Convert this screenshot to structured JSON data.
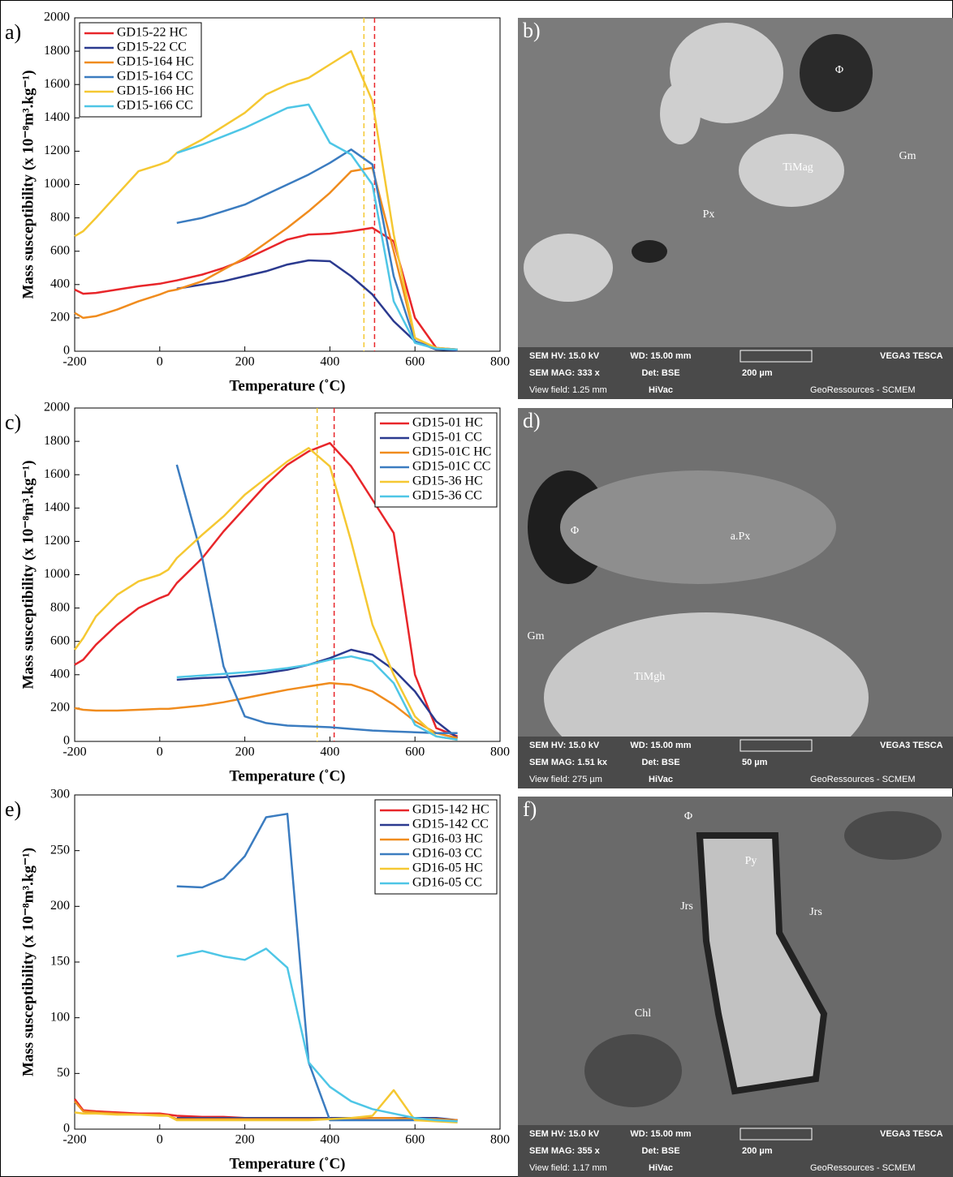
{
  "chart_data": [
    {
      "type": "line",
      "panel_label": "a)",
      "xlabel": "Temperature (˚C)",
      "ylabel": "Mass susceptibility (x 10⁻⁸m³.kg⁻¹)",
      "x": [
        -200,
        -180,
        -150,
        -100,
        -50,
        0,
        20,
        40,
        100,
        150,
        200,
        250,
        300,
        350,
        400,
        450,
        500,
        550,
        600,
        650,
        700
      ],
      "xlim": [
        -200,
        800
      ],
      "xticks": [
        -200,
        0,
        200,
        400,
        600,
        800
      ],
      "ylim": [
        0,
        2000
      ],
      "yticks": [
        0,
        200,
        400,
        600,
        800,
        1000,
        1200,
        1400,
        1600,
        1800,
        2000
      ],
      "legend": "upper left",
      "vlines": [
        {
          "value": 480,
          "color": "#f5c832"
        },
        {
          "value": 505,
          "color": "#e8262a"
        }
      ],
      "series": [
        {
          "name": "GD15-22 HC",
          "color": "#e8262a",
          "values": [
            370,
            345,
            350,
            370,
            390,
            405,
            415,
            425,
            460,
            500,
            550,
            610,
            670,
            700,
            705,
            720,
            740,
            660,
            200,
            20,
            10
          ]
        },
        {
          "name": "GD15-22 CC",
          "color": "#2b3a8f",
          "values": [
            null,
            null,
            null,
            null,
            null,
            null,
            null,
            375,
            400,
            420,
            450,
            480,
            520,
            545,
            540,
            450,
            340,
            180,
            60,
            10,
            5
          ]
        },
        {
          "name": "GD15-164 HC",
          "color": "#f08c1e",
          "values": [
            230,
            200,
            210,
            250,
            300,
            340,
            360,
            370,
            420,
            490,
            560,
            650,
            740,
            840,
            950,
            1080,
            1100,
            600,
            80,
            15,
            10
          ]
        },
        {
          "name": "GD15-164 CC",
          "color": "#3b7cc0",
          "values": [
            null,
            null,
            null,
            null,
            null,
            null,
            null,
            770,
            800,
            840,
            880,
            940,
            1000,
            1060,
            1130,
            1210,
            1120,
            450,
            60,
            15,
            10
          ]
        },
        {
          "name": "GD15-166 HC",
          "color": "#f5c832",
          "values": [
            690,
            720,
            800,
            940,
            1080,
            1120,
            1140,
            1190,
            1270,
            1350,
            1430,
            1540,
            1600,
            1640,
            1720,
            1800,
            1500,
            700,
            80,
            20,
            10
          ]
        },
        {
          "name": "GD15-166 CC",
          "color": "#4ec6e6",
          "values": [
            null,
            null,
            null,
            null,
            null,
            null,
            null,
            1190,
            1240,
            1290,
            1340,
            1400,
            1460,
            1480,
            1250,
            1180,
            1000,
            300,
            50,
            15,
            10
          ]
        }
      ]
    },
    {
      "type": "line",
      "panel_label": "c)",
      "xlabel": "Temperature (˚C)",
      "ylabel": "Mass susceptibility (x 10⁻⁸m³.kg⁻¹)",
      "x": [
        -200,
        -180,
        -150,
        -100,
        -50,
        0,
        20,
        40,
        100,
        150,
        200,
        250,
        300,
        350,
        400,
        450,
        500,
        550,
        600,
        650,
        700
      ],
      "xlim": [
        -200,
        800
      ],
      "xticks": [
        -200,
        0,
        200,
        400,
        600,
        800
      ],
      "ylim": [
        0,
        2000
      ],
      "yticks": [
        0,
        200,
        400,
        600,
        800,
        1000,
        1200,
        1400,
        1600,
        1800,
        2000
      ],
      "legend": "upper right",
      "vlines": [
        {
          "value": 370,
          "color": "#f5c832"
        },
        {
          "value": 410,
          "color": "#e8262a"
        }
      ],
      "series": [
        {
          "name": "GD15-01 HC",
          "color": "#e8262a",
          "values": [
            460,
            490,
            580,
            700,
            800,
            860,
            880,
            950,
            1100,
            1260,
            1400,
            1540,
            1660,
            1740,
            1790,
            1650,
            1450,
            1250,
            400,
            80,
            30
          ]
        },
        {
          "name": "GD15-01 CC",
          "color": "#2b3a8f",
          "values": [
            null,
            null,
            null,
            null,
            null,
            null,
            null,
            370,
            380,
            385,
            395,
            410,
            430,
            460,
            500,
            550,
            520,
            430,
            300,
            120,
            20
          ]
        },
        {
          "name": "GD15-01C HC",
          "color": "#f08c1e",
          "values": [
            200,
            190,
            185,
            185,
            190,
            195,
            195,
            200,
            215,
            235,
            260,
            285,
            310,
            330,
            350,
            340,
            300,
            220,
            120,
            50,
            20
          ]
        },
        {
          "name": "GD15-01C CC",
          "color": "#3b7cc0",
          "values": [
            null,
            null,
            null,
            null,
            null,
            null,
            null,
            1660,
            1100,
            450,
            150,
            110,
            95,
            90,
            85,
            75,
            65,
            60,
            55,
            50,
            50
          ]
        },
        {
          "name": "GD15-36 HC",
          "color": "#f5c832",
          "values": [
            550,
            620,
            750,
            880,
            960,
            1000,
            1030,
            1100,
            1240,
            1350,
            1480,
            1580,
            1680,
            1760,
            1650,
            1200,
            700,
            400,
            150,
            30,
            10
          ]
        },
        {
          "name": "GD15-36 CC",
          "color": "#4ec6e6",
          "values": [
            null,
            null,
            null,
            null,
            null,
            null,
            null,
            385,
            395,
            405,
            415,
            425,
            440,
            460,
            490,
            510,
            480,
            350,
            100,
            30,
            10
          ]
        }
      ]
    },
    {
      "type": "line",
      "panel_label": "e)",
      "xlabel": "Temperature (˚C)",
      "ylabel": "Mass susceptibility (x 10⁻⁸m³.kg⁻¹)",
      "x": [
        -200,
        -180,
        -150,
        -100,
        -50,
        0,
        20,
        40,
        100,
        150,
        200,
        250,
        300,
        350,
        400,
        450,
        500,
        550,
        600,
        650,
        700
      ],
      "xlim": [
        -200,
        800
      ],
      "xticks": [
        -200,
        0,
        200,
        400,
        600,
        800
      ],
      "ylim": [
        0,
        300
      ],
      "yticks": [
        0,
        50,
        100,
        150,
        200,
        250,
        300
      ],
      "legend": "upper right",
      "vlines": [],
      "series": [
        {
          "name": "GD15-142 HC",
          "color": "#e8262a",
          "values": [
            27,
            17,
            16,
            15,
            14,
            14,
            13,
            12,
            11,
            11,
            10,
            10,
            10,
            10,
            10,
            10,
            10,
            10,
            9,
            9,
            8
          ]
        },
        {
          "name": "GD15-142 CC",
          "color": "#2b3a8f",
          "values": [
            null,
            null,
            null,
            null,
            null,
            null,
            null,
            10,
            10,
            10,
            10,
            10,
            10,
            10,
            10,
            10,
            10,
            10,
            10,
            10,
            8
          ]
        },
        {
          "name": "GD16-03 HC",
          "color": "#f08c1e",
          "values": [
            25,
            16,
            15,
            14,
            13,
            13,
            12,
            9,
            9,
            9,
            9,
            9,
            9,
            9,
            9,
            9,
            10,
            10,
            9,
            9,
            8
          ]
        },
        {
          "name": "GD16-03 CC",
          "color": "#3b7cc0",
          "values": [
            null,
            null,
            null,
            null,
            null,
            null,
            null,
            218,
            217,
            225,
            245,
            280,
            283,
            60,
            8,
            8,
            8,
            8,
            8,
            8,
            7
          ]
        },
        {
          "name": "GD16-05 HC",
          "color": "#f5c832",
          "values": [
            15,
            14,
            14,
            13,
            13,
            12,
            12,
            8,
            8,
            8,
            8,
            8,
            8,
            8,
            9,
            10,
            12,
            35,
            8,
            7,
            6
          ]
        },
        {
          "name": "GD16-05 CC",
          "color": "#4ec6e6",
          "values": [
            null,
            null,
            null,
            null,
            null,
            null,
            null,
            155,
            160,
            155,
            152,
            162,
            145,
            60,
            38,
            25,
            18,
            14,
            10,
            8,
            7
          ]
        }
      ]
    }
  ],
  "images": [
    {
      "label": "b)",
      "minerals": [
        "Φ",
        "TiMag",
        "Gm",
        "Px"
      ],
      "info": [
        "SEM HV: 15.0 kV",
        "WD: 15.00 mm",
        "VEGA3 TESCA",
        "SEM MAG: 333 x",
        "Det: BSE",
        "200 µm",
        "View field: 1.25 mm",
        "HiVac",
        "GeoRessources - SCMEM"
      ]
    },
    {
      "label": "d)",
      "minerals": [
        "Φ",
        "a.Px",
        "Gm",
        "TiMgh"
      ],
      "info": [
        "SEM HV: 15.0 kV",
        "WD: 15.00 mm",
        "VEGA3 TESCA",
        "SEM MAG: 1.51 kx",
        "Det: BSE",
        "50 µm",
        "View field: 275 µm",
        "HiVac",
        "GeoRessources - SCMEM"
      ]
    },
    {
      "label": "f)",
      "minerals": [
        "Φ",
        "Py",
        "Jrs",
        "Jrs",
        "Chl"
      ],
      "info": [
        "SEM HV: 15.0 kV",
        "WD: 15.00 mm",
        "VEGA3 TESCA",
        "SEM MAG: 355 x",
        "Det: BSE",
        "200 µm",
        "View field: 1.17 mm",
        "HiVac",
        "GeoRessources - SCMEM"
      ]
    }
  ]
}
